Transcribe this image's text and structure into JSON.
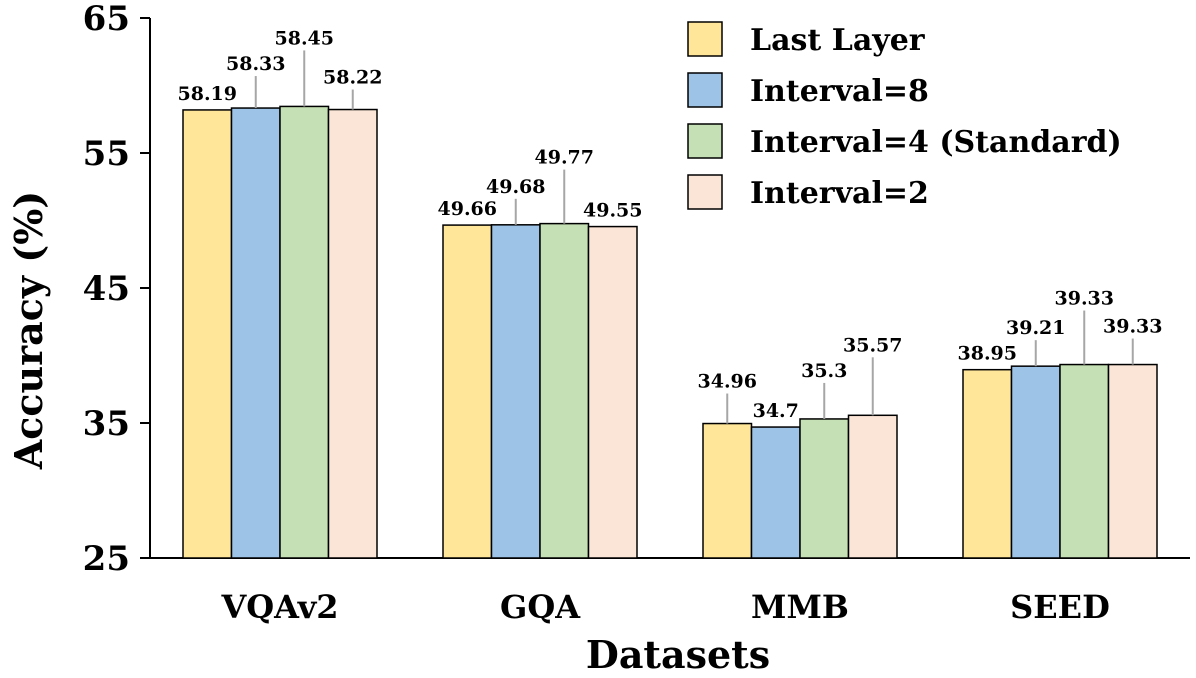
{
  "chart_data": {
    "type": "bar",
    "title": "",
    "xlabel": "Datasets",
    "ylabel": "Accuracy  (%)",
    "ylim": [
      25,
      65
    ],
    "yticks": [
      25,
      35,
      45,
      55,
      65
    ],
    "categories": [
      "VQAv2",
      "GQA",
      "MMB",
      "SEED"
    ],
    "series": [
      {
        "name": "Last Layer",
        "color": "#FFE699",
        "values": [
          58.19,
          49.66,
          34.96,
          38.95
        ],
        "labels": [
          "58.19",
          "49.66",
          "34.96",
          "38.95"
        ]
      },
      {
        "name": "Interval=8",
        "color": "#9DC3E6",
        "values": [
          58.33,
          49.68,
          34.7,
          39.21
        ],
        "labels": [
          "58.33",
          "49.68",
          "34.7",
          "39.21"
        ]
      },
      {
        "name": "Interval=4 (Standard)",
        "color": "#C5E0B4",
        "values": [
          58.45,
          49.77,
          35.3,
          39.33
        ],
        "labels": [
          "58.45",
          "49.77",
          "35.3",
          "39.33"
        ]
      },
      {
        "name": "Interval=2",
        "color": "#FBE5D6",
        "values": [
          58.22,
          49.55,
          35.57,
          39.33
        ],
        "labels": [
          "58.22",
          "49.55",
          "35.57",
          "39.33"
        ]
      }
    ],
    "grid": false,
    "legend_position": "top-right"
  }
}
